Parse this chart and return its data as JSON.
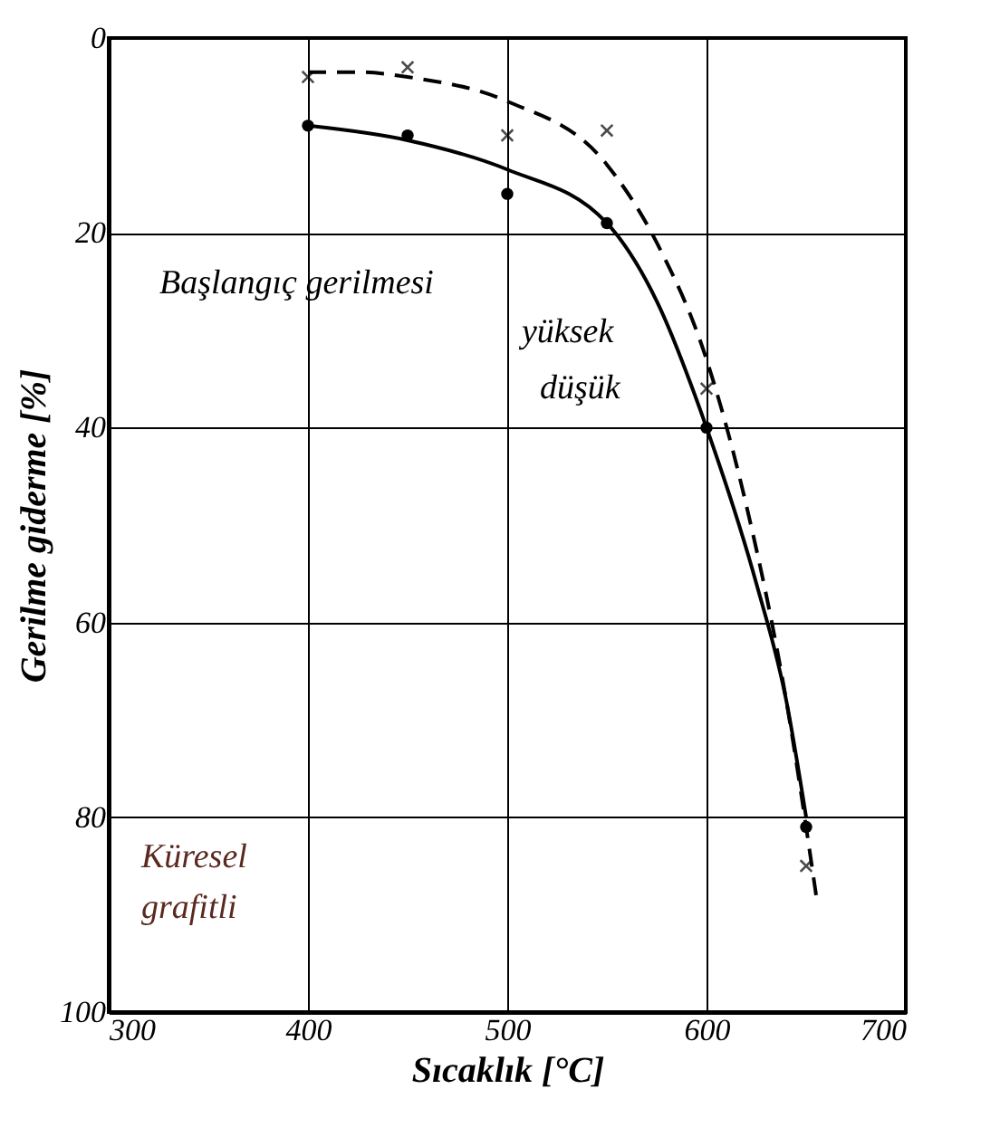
{
  "chart_data": {
    "type": "line",
    "xlabel": "Sıcaklık [°C]",
    "ylabel": "Gerilme giderme [%]",
    "xlim": [
      300,
      700
    ],
    "xticks": [
      300,
      400,
      500,
      600,
      700
    ],
    "ylim": [
      100,
      0
    ],
    "yticks": [
      0,
      20,
      40,
      60,
      80,
      100
    ],
    "grid": true,
    "annotations": [
      "Başlangıç gerilmesi",
      "yüksek",
      "düşük",
      "Küresel grafitli"
    ],
    "series": [
      {
        "color": "#000000",
        "line_style": "dashed",
        "marker": "none",
        "x": [
          400,
          425,
          450,
          500,
          550,
          575,
          600,
          620,
          640,
          655
        ],
        "values": [
          3.5,
          3.5,
          4,
          6.5,
          13,
          21,
          33,
          48,
          68,
          88
        ]
      },
      {
        "color": "#000000",
        "line_style": "solid",
        "marker": "none",
        "x": [
          400,
          450,
          500,
          550,
          575,
          600,
          625,
          640,
          650
        ],
        "values": [
          9,
          10.5,
          13.5,
          19,
          27,
          40,
          56,
          68,
          80
        ]
      },
      {
        "type": "scatter",
        "color": "#000000",
        "marker": "cross",
        "x": [
          400,
          450,
          500,
          550,
          600,
          650
        ],
        "values": [
          4,
          3,
          10,
          9.5,
          36,
          85
        ]
      },
      {
        "type": "scatter",
        "color": "#000000",
        "marker": "circle",
        "x": [
          400,
          450,
          500,
          550,
          600,
          650
        ],
        "values": [
          9,
          10,
          16,
          19,
          40,
          81
        ]
      }
    ]
  }
}
